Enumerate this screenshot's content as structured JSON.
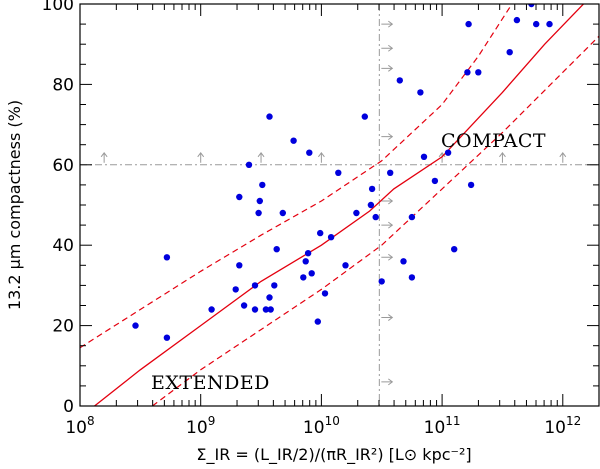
{
  "chart_data": {
    "type": "scatter",
    "xscale": "log",
    "xlim_log10": [
      8,
      12.3
    ],
    "ylim": [
      0,
      100
    ],
    "xticks": [
      {
        "base": "10",
        "exp": "8",
        "log10": 8
      },
      {
        "base": "10",
        "exp": "9",
        "log10": 9
      },
      {
        "base": "10",
        "exp": "10",
        "log10": 10
      },
      {
        "base": "10",
        "exp": "11",
        "log10": 11
      },
      {
        "base": "10",
        "exp": "12",
        "log10": 12
      }
    ],
    "yticks": [
      "0",
      "20",
      "40",
      "60",
      "80",
      "100"
    ],
    "xlabel": "Σ_IR = (L_IR/2)/(πR_IR²) [L⊙ kpc⁻²]",
    "ylabel": "13.2 μm compactness (%)",
    "annotations": {
      "compact": "COMPACT",
      "extended": "EXTENDED"
    },
    "threshold_x_log10": 10.48,
    "threshold_y": 60,
    "fit": {
      "central": [
        [
          8.12,
          0
        ],
        [
          8.5,
          9
        ],
        [
          9.0,
          20
        ],
        [
          9.5,
          31
        ],
        [
          10.0,
          40
        ],
        [
          10.4,
          48.5
        ],
        [
          10.6,
          54
        ],
        [
          11.0,
          62
        ],
        [
          11.5,
          78
        ],
        [
          11.85,
          90
        ],
        [
          12.3,
          104
        ]
      ],
      "upper": [
        [
          8.0,
          14.5
        ],
        [
          8.5,
          24
        ],
        [
          9.0,
          33.5
        ],
        [
          9.5,
          42.5
        ],
        [
          10.0,
          51
        ],
        [
          10.5,
          61
        ],
        [
          11.0,
          75
        ],
        [
          11.3,
          87
        ],
        [
          11.6,
          101
        ]
      ],
      "lower": [
        [
          8.6,
          0
        ],
        [
          9.0,
          9
        ],
        [
          9.5,
          19
        ],
        [
          10.0,
          29
        ],
        [
          10.5,
          40
        ],
        [
          11.0,
          54
        ],
        [
          11.5,
          68
        ],
        [
          12.0,
          83
        ],
        [
          12.3,
          92
        ]
      ]
    },
    "points": [
      [
        8.46,
        20
      ],
      [
        8.72,
        37
      ],
      [
        8.72,
        17
      ],
      [
        9.09,
        24
      ],
      [
        9.29,
        29
      ],
      [
        9.32,
        35
      ],
      [
        9.32,
        52
      ],
      [
        9.36,
        25
      ],
      [
        9.4,
        60
      ],
      [
        9.45,
        24
      ],
      [
        9.45,
        30
      ],
      [
        9.48,
        48
      ],
      [
        9.49,
        51
      ],
      [
        9.51,
        55
      ],
      [
        9.54,
        24
      ],
      [
        9.57,
        72
      ],
      [
        9.57,
        27
      ],
      [
        9.58,
        24
      ],
      [
        9.61,
        30
      ],
      [
        9.63,
        39
      ],
      [
        9.68,
        48
      ],
      [
        9.77,
        66
      ],
      [
        9.85,
        32
      ],
      [
        9.87,
        36
      ],
      [
        9.89,
        38
      ],
      [
        9.9,
        63
      ],
      [
        9.92,
        33
      ],
      [
        9.97,
        21
      ],
      [
        9.99,
        43
      ],
      [
        10.03,
        28
      ],
      [
        10.08,
        42
      ],
      [
        10.14,
        58
      ],
      [
        10.2,
        35
      ],
      [
        10.29,
        48
      ],
      [
        10.36,
        72
      ],
      [
        10.41,
        50
      ],
      [
        10.42,
        54
      ],
      [
        10.45,
        47
      ],
      [
        10.5,
        31
      ],
      [
        10.57,
        58
      ],
      [
        10.65,
        81
      ],
      [
        10.68,
        36
      ],
      [
        10.75,
        47
      ],
      [
        10.75,
        32
      ],
      [
        10.82,
        78
      ],
      [
        10.85,
        62
      ],
      [
        10.94,
        56
      ],
      [
        11.05,
        63
      ],
      [
        11.1,
        39
      ],
      [
        11.21,
        83
      ],
      [
        11.22,
        95
      ],
      [
        11.24,
        55
      ],
      [
        11.3,
        83
      ],
      [
        11.56,
        88
      ],
      [
        11.62,
        96
      ],
      [
        11.74,
        100
      ],
      [
        11.78,
        95
      ],
      [
        11.89,
        95
      ]
    ],
    "arrows_up_x_log10": [
      8.2,
      9.0,
      9.5,
      10.0,
      11.0,
      11.5,
      12.0
    ],
    "arrows_right_y": [
      6,
      22,
      37,
      45,
      51,
      67,
      84,
      89,
      95
    ]
  },
  "colors": {
    "points": "#0000dd",
    "fit": "#e4000f",
    "guide": "#9a9a9a",
    "axes": "#000000"
  }
}
